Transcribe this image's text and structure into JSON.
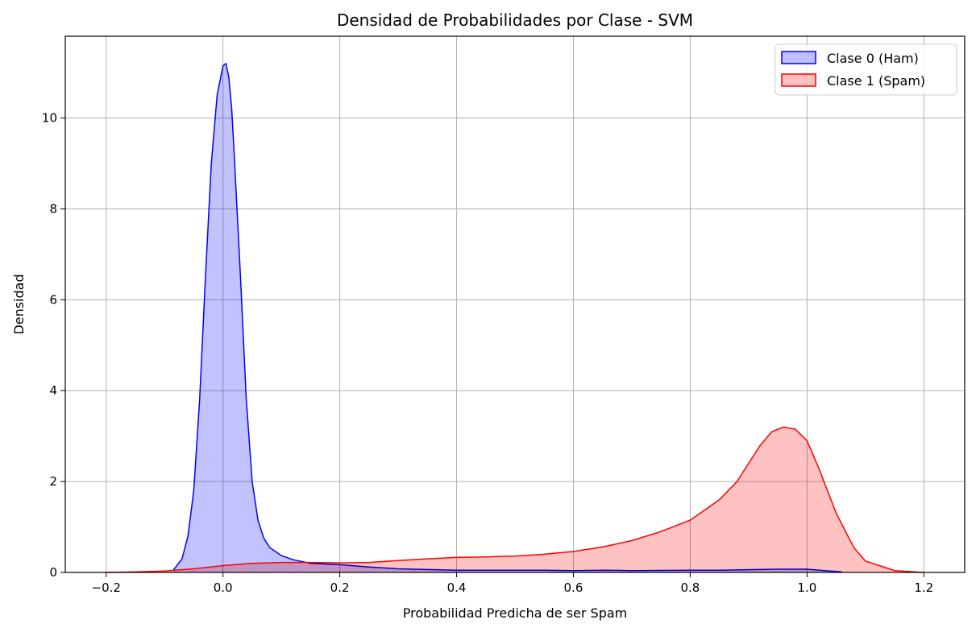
{
  "chart_data": {
    "type": "area",
    "title": "Densidad de Probabilidades por Clase - SVM",
    "xlabel": "Probabilidad Predicha de ser Spam",
    "ylabel": "Densidad",
    "xlim": [
      -0.27,
      1.27
    ],
    "ylim": [
      0,
      11.8
    ],
    "x_ticks": [
      -0.2,
      0.0,
      0.2,
      0.4,
      0.6,
      0.8,
      1.0,
      1.2
    ],
    "x_tick_labels": [
      "−0.2",
      "0.0",
      "0.2",
      "0.4",
      "0.6",
      "0.8",
      "1.0",
      "1.2"
    ],
    "y_ticks": [
      0,
      2,
      4,
      6,
      8,
      10
    ],
    "y_tick_labels": [
      "0",
      "2",
      "4",
      "6",
      "8",
      "10"
    ],
    "grid": true,
    "legend_position": "top-right",
    "series": [
      {
        "name": "Clase 0 (Ham)",
        "color": "#0000ff",
        "fill": "#bfbfff",
        "x": [
          -0.085,
          -0.07,
          -0.06,
          -0.05,
          -0.04,
          -0.03,
          -0.02,
          -0.01,
          0.0,
          0.005,
          0.01,
          0.015,
          0.02,
          0.03,
          0.04,
          0.05,
          0.06,
          0.07,
          0.08,
          0.1,
          0.12,
          0.15,
          0.2,
          0.25,
          0.3,
          0.4,
          0.5,
          0.55,
          0.6,
          0.65,
          0.7,
          0.8,
          0.85,
          0.9,
          0.95,
          1.0,
          1.03,
          1.06
        ],
        "y": [
          0.05,
          0.3,
          0.8,
          1.8,
          3.8,
          6.5,
          9.0,
          10.5,
          11.15,
          11.2,
          10.9,
          10.2,
          9.0,
          6.5,
          3.8,
          2.0,
          1.15,
          0.75,
          0.55,
          0.37,
          0.28,
          0.2,
          0.17,
          0.12,
          0.08,
          0.05,
          0.05,
          0.05,
          0.04,
          0.05,
          0.04,
          0.05,
          0.05,
          0.06,
          0.07,
          0.07,
          0.04,
          0.01
        ]
      },
      {
        "name": "Clase 1 (Spam)",
        "color": "#ff0000",
        "fill": "#ffbfbf",
        "x": [
          -0.2,
          -0.15,
          -0.1,
          -0.05,
          0.0,
          0.05,
          0.1,
          0.15,
          0.2,
          0.25,
          0.3,
          0.35,
          0.4,
          0.45,
          0.5,
          0.55,
          0.6,
          0.65,
          0.7,
          0.75,
          0.8,
          0.85,
          0.88,
          0.9,
          0.92,
          0.94,
          0.96,
          0.98,
          1.0,
          1.02,
          1.05,
          1.08,
          1.1,
          1.15,
          1.2
        ],
        "y": [
          0.0,
          0.01,
          0.03,
          0.08,
          0.15,
          0.2,
          0.22,
          0.22,
          0.21,
          0.22,
          0.26,
          0.3,
          0.33,
          0.34,
          0.36,
          0.4,
          0.46,
          0.56,
          0.7,
          0.9,
          1.15,
          1.6,
          2.0,
          2.4,
          2.8,
          3.1,
          3.2,
          3.15,
          2.9,
          2.3,
          1.3,
          0.55,
          0.25,
          0.04,
          0.0
        ]
      }
    ]
  }
}
